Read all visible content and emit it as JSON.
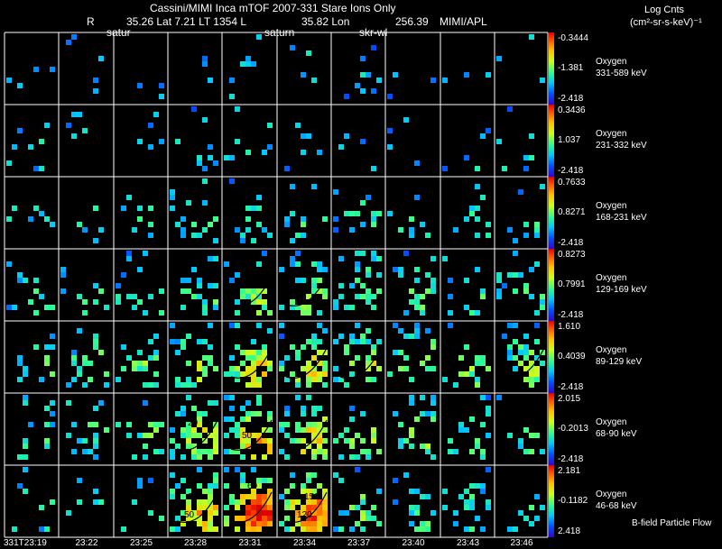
{
  "header": {
    "title": "Cassini/MIMI Inca mTOF  2007-331   Stare    Ions Only",
    "r_label": "R",
    "position": "35.26 Lat 7.21 LT 1354 L",
    "lon": "35.82 Lon",
    "lon_value": "256.39",
    "source": "MIMI/APL",
    "tag_satur": "satur",
    "tag_saturn": "saturn",
    "tag_skr": "skr-wl",
    "units_line1": "Log Cnts",
    "units_line2": "(cm²-sr-s-keV)⁻¹"
  },
  "footer": {
    "bfield_label": "B-field Particle Flow"
  },
  "colors": {
    "background": "#000000",
    "grid": "#ffffff"
  },
  "chart_data": {
    "type": "heatmap",
    "title": "Cassini/MIMI Inca mTOF 2007-331 Stare Ions Only",
    "time_labels": [
      "331T23:19",
      "23:22",
      "23:25",
      "23:28",
      "23:31",
      "23:34",
      "23:37",
      "23:40",
      "23:43",
      "23:46"
    ],
    "rows": [
      {
        "species": "Oxygen",
        "energy": "331-589 keV",
        "cmax": "-0.3444",
        "cmid": "-1.381",
        "cmin": "-2.418",
        "activity": [
          0.05,
          0.06,
          0.05,
          0.05,
          0.06,
          0.06,
          0.05,
          0.05,
          0.05,
          0.05
        ]
      },
      {
        "species": "Oxygen",
        "energy": "231-332 keV",
        "cmax": "0.3436",
        "cmid": "1.037",
        "cmin": "-2.418",
        "activity": [
          0.07,
          0.08,
          0.07,
          0.08,
          0.08,
          0.07,
          0.07,
          0.07,
          0.07,
          0.08
        ]
      },
      {
        "species": "Oxygen",
        "energy": "168-231 keV",
        "cmax": "0.7633",
        "cmid": "0.8271",
        "cmin": "-2.418",
        "activity": [
          0.1,
          0.12,
          0.14,
          0.14,
          0.16,
          0.16,
          0.15,
          0.13,
          0.12,
          0.12
        ]
      },
      {
        "species": "Oxygen",
        "energy": "129-169 keV",
        "cmax": "0.8273",
        "cmid": "0.7991",
        "cmin": "-2.418",
        "activity": [
          0.14,
          0.16,
          0.18,
          0.22,
          0.3,
          0.3,
          0.26,
          0.22,
          0.2,
          0.18
        ]
      },
      {
        "species": "Oxygen",
        "energy": "89-129 keV",
        "cmax": "1.610",
        "cmid": "0.4039",
        "cmin": "-2.418",
        "activity": [
          0.18,
          0.22,
          0.26,
          0.34,
          0.45,
          0.45,
          0.38,
          0.32,
          0.28,
          0.28
        ]
      },
      {
        "species": "Oxygen",
        "energy": "68-90 keV",
        "cmax": "2.015",
        "cmid": "-0.2013",
        "cmin": "-2.418",
        "activity": [
          0.14,
          0.18,
          0.24,
          0.42,
          0.55,
          0.5,
          0.32,
          0.28,
          0.22,
          0.2
        ]
      },
      {
        "species": "Oxygen",
        "energy": "46-68 keV",
        "cmax": "2.181",
        "cmid": "-0.1182",
        "cmin": "2.418",
        "activity": [
          0.1,
          0.12,
          0.14,
          0.55,
          0.8,
          0.7,
          0.26,
          0.2,
          0.16,
          0.14
        ]
      }
    ],
    "contour_labels": [
      "20",
      "50",
      "60",
      "120",
      "150"
    ]
  }
}
